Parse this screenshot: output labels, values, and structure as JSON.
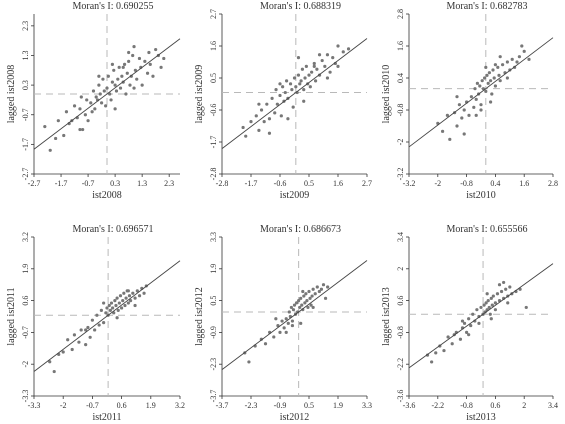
{
  "chart_data": [
    {
      "type": "scatter",
      "title": "Moran's I: 0.690255",
      "xlabel": "ist2008",
      "ylabel": "lagged ist2008",
      "xticks": [
        "-2.7",
        "-1.7",
        "-0.7",
        "0.3",
        "1.3",
        "2.3"
      ],
      "yticks": [
        "-2.7",
        "-1.7",
        "-0.7",
        "0.3",
        "1.3",
        "2.3"
      ],
      "xlim": [
        -2.7,
        2.7
      ],
      "ylim": [
        -2.7,
        2.7
      ],
      "slope": 0.690255,
      "mean_x": 0,
      "mean_y": 0,
      "x": [
        -2.3,
        -2.1,
        -1.9,
        -1.8,
        -1.6,
        -1.5,
        -1.4,
        -1.3,
        -1.2,
        -1.1,
        -1.0,
        -0.95,
        -0.9,
        -0.8,
        -0.75,
        -0.7,
        -0.6,
        -0.55,
        -0.5,
        -0.45,
        -0.4,
        -0.35,
        -0.3,
        -0.25,
        -0.2,
        -0.15,
        -0.1,
        -0.05,
        0.0,
        0.05,
        0.1,
        0.15,
        0.2,
        0.25,
        0.3,
        0.35,
        0.4,
        0.45,
        0.5,
        0.55,
        0.6,
        0.65,
        0.7,
        0.75,
        0.8,
        0.85,
        0.9,
        0.95,
        1.0,
        1.05,
        1.1,
        1.2,
        1.25,
        1.3,
        1.4,
        1.5,
        1.55,
        1.6,
        1.7,
        1.8,
        1.9,
        2.0,
        2.1,
        0.3,
        -0.3,
        0.6,
        1.0,
        -1.0,
        0.2,
        0.8
      ],
      "y": [
        -1.1,
        -1.9,
        -1.5,
        -0.9,
        -1.4,
        -0.6,
        -1.0,
        -0.9,
        -0.4,
        -0.8,
        -0.5,
        -0.1,
        -1.2,
        -0.7,
        -0.2,
        -0.9,
        -0.3,
        -0.6,
        0.1,
        -0.5,
        -0.1,
        -0.2,
        0.3,
        0.0,
        -0.3,
        0.5,
        0.1,
        -0.4,
        0.2,
        0.6,
        0.0,
        -0.2,
        0.4,
        0.8,
        0.3,
        0.1,
        0.5,
        0.9,
        0.2,
        0.6,
        0.4,
        1.0,
        0.0,
        0.7,
        1.1,
        0.3,
        0.6,
        1.3,
        0.2,
        0.8,
        0.5,
        1.2,
        0.9,
        0.3,
        1.1,
        0.7,
        1.4,
        1.0,
        0.6,
        1.5,
        1.3,
        0.9,
        1.2,
        -0.5,
        0.6,
        0.9,
        1.6,
        -1.2,
        1.0,
        1.4
      ]
    },
    {
      "type": "scatter",
      "title": "Moran's I: 0.688319",
      "xlabel": "ist2009",
      "ylabel": "lagged ist2009",
      "xticks": [
        "-2.8",
        "-1.7",
        "-0.6",
        "0.5",
        "1.6",
        "2.7"
      ],
      "yticks": [
        "-2.8",
        "-1.7",
        "-0.6",
        "0.5",
        "1.6",
        "2.7"
      ],
      "xlim": [
        -2.8,
        2.7
      ],
      "ylim": [
        -2.8,
        2.7
      ],
      "slope": 0.688319,
      "mean_x": 0,
      "mean_y": 0,
      "x": [
        -2.0,
        -1.9,
        -1.7,
        -1.5,
        -1.4,
        -1.3,
        -1.2,
        -1.1,
        -1.0,
        -0.9,
        -0.8,
        -0.75,
        -0.7,
        -0.6,
        -0.55,
        -0.5,
        -0.45,
        -0.4,
        -0.35,
        -0.3,
        -0.2,
        -0.15,
        -0.1,
        -0.05,
        0.0,
        0.05,
        0.1,
        0.15,
        0.2,
        0.25,
        0.3,
        0.35,
        0.4,
        0.45,
        0.5,
        0.55,
        0.6,
        0.7,
        0.75,
        0.8,
        0.9,
        1.0,
        1.1,
        1.2,
        1.3,
        1.4,
        1.5,
        1.6,
        1.8,
        2.0,
        -1.0,
        -0.6,
        0.3,
        0.7,
        1.2,
        -0.3,
        0.1,
        -1.4,
        0.9,
        1.6
      ],
      "y": [
        -1.2,
        -1.5,
        -1.0,
        -0.8,
        -1.3,
        -0.6,
        -1.0,
        -0.4,
        -0.9,
        -0.2,
        -0.7,
        0.1,
        -0.4,
        -0.1,
        -0.8,
        0.2,
        -0.3,
        0.0,
        0.4,
        -0.2,
        0.3,
        0.1,
        -0.5,
        0.5,
        0.2,
        0.0,
        0.6,
        0.3,
        0.4,
        0.8,
        0.1,
        0.5,
        0.9,
        0.3,
        0.6,
        0.2,
        0.7,
        1.0,
        0.4,
        0.8,
        0.6,
        1.1,
        0.9,
        1.3,
        0.7,
        1.2,
        1.0,
        1.6,
        1.4,
        1.5,
        -1.4,
        0.3,
        -0.3,
        0.9,
        0.5,
        -0.9,
        1.2,
        -0.4,
        1.3,
        0.9
      ]
    },
    {
      "type": "scatter",
      "title": "Moran's I: 0.682783",
      "xlabel": "ist2010",
      "ylabel": "lagged ist2010",
      "xticks": [
        "-3.2",
        "-2",
        "-0.8",
        "0.4",
        "1.6",
        "2.8"
      ],
      "yticks": [
        "-3.2",
        "-2",
        "-0.8",
        "0.4",
        "1.6",
        "2.8"
      ],
      "xlim": [
        -3.2,
        2.8
      ],
      "ylim": [
        -3.2,
        2.8
      ],
      "slope": 0.682783,
      "mean_x": 0,
      "mean_y": 0,
      "x": [
        -2.0,
        -1.8,
        -1.6,
        -1.5,
        -1.3,
        -1.2,
        -1.1,
        -1.0,
        -0.9,
        -0.8,
        -0.7,
        -0.6,
        -0.5,
        -0.45,
        -0.4,
        -0.35,
        -0.3,
        -0.25,
        -0.2,
        -0.15,
        -0.1,
        -0.05,
        0.0,
        0.05,
        0.1,
        0.15,
        0.2,
        0.25,
        0.3,
        0.35,
        0.4,
        0.5,
        0.55,
        0.6,
        0.7,
        0.8,
        0.9,
        1.0,
        1.1,
        1.2,
        1.4,
        1.6,
        1.8,
        -0.9,
        -0.4,
        0.2,
        0.6,
        1.3,
        -1.2,
        0.0,
        0.9,
        -0.2,
        0.4,
        1.5
      ],
      "y": [
        -1.3,
        -1.6,
        -1.0,
        -1.9,
        -0.9,
        -1.4,
        -0.6,
        -1.1,
        -0.8,
        -0.5,
        -1.0,
        -0.3,
        -0.7,
        0.0,
        -0.4,
        0.2,
        -0.2,
        0.1,
        -0.6,
        0.3,
        0.0,
        0.4,
        -0.1,
        0.5,
        0.2,
        0.6,
        0.3,
        -0.2,
        0.7,
        0.4,
        0.1,
        0.8,
        0.5,
        0.3,
        0.9,
        0.6,
        1.0,
        0.7,
        1.1,
        0.8,
        1.2,
        1.4,
        1.1,
        -1.7,
        -1.0,
        -0.5,
        1.2,
        1.0,
        -0.3,
        0.8,
        0.4,
        -0.8,
        0.9,
        1.6
      ]
    },
    {
      "type": "scatter",
      "title": "Moran's I: 0.696571",
      "xlabel": "ist2011",
      "ylabel": "lagged ist2011",
      "xticks": [
        "-3.3",
        "-2",
        "-0.7",
        "0.6",
        "1.9",
        "3.2"
      ],
      "yticks": [
        "-3.3",
        "-2",
        "-0.7",
        "0.6",
        "1.9",
        "3.2"
      ],
      "xlim": [
        -3.3,
        3.2
      ],
      "ylim": [
        -3.3,
        3.2
      ],
      "slope": 0.696571,
      "mean_x": 0,
      "mean_y": 0,
      "x": [
        -2.6,
        -2.4,
        -2.2,
        -2.0,
        -1.8,
        -1.6,
        -1.5,
        -1.3,
        -1.2,
        -1.0,
        -0.9,
        -0.8,
        -0.7,
        -0.6,
        -0.5,
        -0.4,
        -0.3,
        -0.2,
        -0.1,
        -0.05,
        0.0,
        0.05,
        0.1,
        0.15,
        0.2,
        0.25,
        0.3,
        0.35,
        0.4,
        0.45,
        0.5,
        0.55,
        0.6,
        0.65,
        0.7,
        0.75,
        0.8,
        0.85,
        0.9,
        0.95,
        1.0,
        1.1,
        1.2,
        1.3,
        1.4,
        1.5,
        1.6,
        1.7,
        -1.0,
        -0.2,
        0.4,
        0.9,
        1.2
      ],
      "y": [
        -1.9,
        -2.3,
        -1.6,
        -1.5,
        -1.0,
        -1.4,
        -0.8,
        -1.1,
        -0.6,
        -1.2,
        -0.5,
        -0.9,
        -0.2,
        -0.6,
        0.0,
        -0.4,
        0.2,
        -0.3,
        0.1,
        0.3,
        0.0,
        0.4,
        0.2,
        0.5,
        0.3,
        0.1,
        0.6,
        0.4,
        0.7,
        0.2,
        0.5,
        0.8,
        0.3,
        0.6,
        0.9,
        0.4,
        0.7,
        1.0,
        0.5,
        0.8,
        0.6,
        0.9,
        0.7,
        1.0,
        0.8,
        1.1,
        0.9,
        1.2,
        -0.6,
        0.5,
        -0.1,
        1.0,
        0.4
      ]
    },
    {
      "type": "scatter",
      "title": "Moran's I: 0.686673",
      "xlabel": "ist2012",
      "ylabel": "lagged ist2012",
      "xticks": [
        "-3.7",
        "-2.3",
        "-0.9",
        "0.5",
        "1.9",
        "3.3"
      ],
      "yticks": [
        "-3.7",
        "-2.3",
        "-0.9",
        "0.5",
        "1.9",
        "3.3"
      ],
      "xlim": [
        -3.7,
        3.3
      ],
      "ylim": [
        -3.7,
        3.3
      ],
      "slope": 0.686673,
      "mean_x": 0,
      "mean_y": 0,
      "x": [
        -2.6,
        -2.4,
        -2.1,
        -1.8,
        -1.6,
        -1.4,
        -1.2,
        -1.0,
        -0.9,
        -0.8,
        -0.7,
        -0.6,
        -0.5,
        -0.45,
        -0.4,
        -0.35,
        -0.3,
        -0.25,
        -0.2,
        -0.15,
        -0.1,
        -0.05,
        0.0,
        0.05,
        0.1,
        0.15,
        0.2,
        0.25,
        0.3,
        0.35,
        0.4,
        0.45,
        0.5,
        0.55,
        0.6,
        0.65,
        0.7,
        0.8,
        0.9,
        1.0,
        1.1,
        1.2,
        1.4,
        -1.1,
        -0.6,
        0.2,
        0.7,
        1.3,
        -0.3,
        0.1
      ],
      "y": [
        -1.8,
        -2.2,
        -1.5,
        -1.2,
        -1.4,
        -0.9,
        -1.1,
        -0.6,
        -0.9,
        -0.4,
        -0.7,
        -0.3,
        -0.5,
        0.0,
        -0.2,
        0.2,
        -0.4,
        0.1,
        0.3,
        -0.1,
        0.4,
        0.0,
        0.5,
        0.2,
        0.6,
        0.3,
        0.1,
        0.7,
        0.4,
        0.8,
        0.5,
        0.2,
        0.9,
        0.6,
        0.3,
        0.7,
        1.0,
        0.8,
        1.1,
        0.9,
        1.0,
        1.2,
        1.1,
        -0.3,
        -0.9,
        0.9,
        0.2,
        0.6,
        -0.6,
        -0.5
      ]
    },
    {
      "type": "scatter",
      "title": "Moran's I: 0.655566",
      "xlabel": "ist2013",
      "ylabel": "lagged ist2013",
      "xticks": [
        "-3.6",
        "-2.2",
        "-0.8",
        "0.6",
        "2",
        "3.4"
      ],
      "yticks": [
        "-3.6",
        "-2.2",
        "-0.8",
        "0.6",
        "2",
        "3.4"
      ],
      "xlim": [
        -3.6,
        3.4
      ],
      "ylim": [
        -3.6,
        3.4
      ],
      "slope": 0.655566,
      "mean_x": 0,
      "mean_y": 0,
      "x": [
        -2.7,
        -2.5,
        -2.3,
        -2.1,
        -1.9,
        -1.7,
        -1.5,
        -1.3,
        -1.1,
        -1.0,
        -0.9,
        -0.8,
        -0.7,
        -0.6,
        -0.5,
        -0.4,
        -0.3,
        -0.2,
        -0.1,
        0.0,
        0.05,
        0.1,
        0.15,
        0.2,
        0.25,
        0.3,
        0.35,
        0.4,
        0.45,
        0.5,
        0.6,
        0.7,
        0.8,
        0.9,
        1.0,
        1.1,
        1.2,
        1.3,
        1.4,
        1.6,
        1.8,
        2.1,
        -1.4,
        -0.7,
        0.2,
        0.8,
        1.2,
        -0.2,
        0.4,
        1.0,
        -1.0,
        0.6
      ],
      "y": [
        -1.8,
        -2.1,
        -1.7,
        -1.4,
        -1.6,
        -1.0,
        -1.3,
        -0.8,
        -1.1,
        -0.6,
        -0.4,
        -0.8,
        -0.2,
        -0.5,
        0.0,
        -0.3,
        0.2,
        -0.1,
        0.3,
        0.0,
        0.4,
        0.1,
        0.5,
        0.2,
        0.6,
        0.3,
        0.0,
        0.7,
        0.4,
        0.8,
        0.5,
        0.9,
        0.6,
        1.0,
        0.7,
        1.1,
        0.8,
        1.2,
        0.9,
        1.0,
        1.1,
        0.3,
        -0.9,
        -0.9,
        0.9,
        1.3,
        0.5,
        -0.4,
        -0.2,
        1.4,
        -0.3,
        0.2
      ]
    }
  ]
}
